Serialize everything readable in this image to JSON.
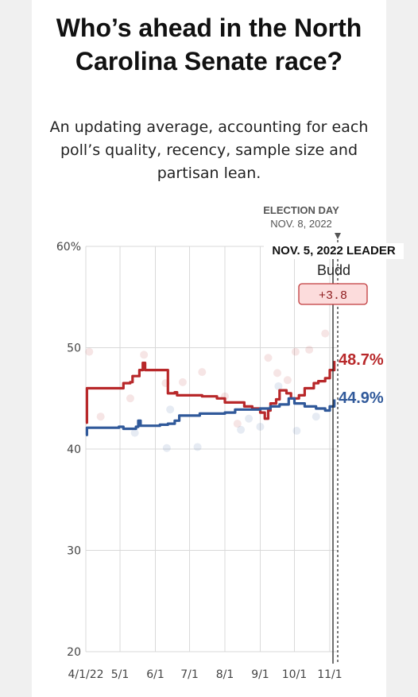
{
  "title": "Who’s ahead in the North Carolina Senate race?",
  "subtitle": "An updating average, accounting for each poll’s quality, recency, sample size and partisan lean.",
  "election_day": {
    "label": "ELECTION DAY",
    "date": "NOV. 8, 2022"
  },
  "leader_box": {
    "heading": "NOV. 5, 2022 LEADER",
    "name": "Budd",
    "margin": "+3.8"
  },
  "end_labels": {
    "rep": "48.7%",
    "dem": "44.9%"
  },
  "colors": {
    "rep": "#b8282a",
    "dem": "#30599a",
    "grid": "#d9d9d9",
    "leader_bg": "#fcdcdc"
  },
  "chart_data": {
    "type": "line",
    "x_tick_labels": [
      "4/1/22",
      "5/1",
      "6/1",
      "7/1",
      "8/1",
      "9/1",
      "10/1",
      "11/1"
    ],
    "y_tick_labels": [
      "60%",
      "50",
      "40",
      "30",
      "20"
    ],
    "ylim": [
      20,
      60
    ],
    "xlim": [
      "2022-04-01",
      "2022-11-08"
    ],
    "grid": true,
    "series": [
      {
        "party": "rep",
        "points": [
          [
            "2022-04-01",
            42.6
          ],
          [
            "2022-04-02",
            46.0
          ],
          [
            "2022-04-30",
            46.0
          ],
          [
            "2022-05-04",
            46.5
          ],
          [
            "2022-05-10",
            46.6
          ],
          [
            "2022-05-12",
            47.2
          ],
          [
            "2022-05-18",
            47.8
          ],
          [
            "2022-05-21",
            48.5
          ],
          [
            "2022-05-23",
            47.8
          ],
          [
            "2022-06-04",
            47.8
          ],
          [
            "2022-06-10",
            47.8
          ],
          [
            "2022-06-12",
            45.5
          ],
          [
            "2022-06-18",
            45.6
          ],
          [
            "2022-06-20",
            45.3
          ],
          [
            "2022-07-05",
            45.3
          ],
          [
            "2022-07-12",
            45.2
          ],
          [
            "2022-07-25",
            45.0
          ],
          [
            "2022-08-01",
            44.6
          ],
          [
            "2022-08-18",
            44.2
          ],
          [
            "2022-08-25",
            44.0
          ],
          [
            "2022-09-01",
            43.6
          ],
          [
            "2022-09-05",
            43.0
          ],
          [
            "2022-09-08",
            43.8
          ],
          [
            "2022-09-10",
            44.5
          ],
          [
            "2022-09-15",
            44.9
          ],
          [
            "2022-09-18",
            45.8
          ],
          [
            "2022-09-24",
            45.5
          ],
          [
            "2022-09-28",
            45.0
          ],
          [
            "2022-10-05",
            45.3
          ],
          [
            "2022-10-10",
            46.0
          ],
          [
            "2022-10-18",
            46.5
          ],
          [
            "2022-10-22",
            46.7
          ],
          [
            "2022-10-28",
            47.0
          ],
          [
            "2022-11-01",
            47.8
          ],
          [
            "2022-11-05",
            48.7
          ]
        ]
      },
      {
        "party": "dem",
        "points": [
          [
            "2022-04-01",
            41.4
          ],
          [
            "2022-04-02",
            42.1
          ],
          [
            "2022-04-30",
            42.2
          ],
          [
            "2022-05-04",
            42.0
          ],
          [
            "2022-05-15",
            42.2
          ],
          [
            "2022-05-17",
            42.8
          ],
          [
            "2022-05-19",
            42.3
          ],
          [
            "2022-06-05",
            42.4
          ],
          [
            "2022-06-12",
            42.5
          ],
          [
            "2022-06-18",
            42.8
          ],
          [
            "2022-06-22",
            43.3
          ],
          [
            "2022-07-05",
            43.3
          ],
          [
            "2022-07-10",
            43.5
          ],
          [
            "2022-08-01",
            43.6
          ],
          [
            "2022-08-10",
            43.9
          ],
          [
            "2022-08-20",
            43.9
          ],
          [
            "2022-09-01",
            44.0
          ],
          [
            "2022-09-10",
            44.2
          ],
          [
            "2022-09-18",
            44.4
          ],
          [
            "2022-09-26",
            45.0
          ],
          [
            "2022-10-01",
            44.5
          ],
          [
            "2022-10-10",
            44.2
          ],
          [
            "2022-10-20",
            44.0
          ],
          [
            "2022-10-28",
            43.8
          ],
          [
            "2022-11-01",
            44.2
          ],
          [
            "2022-11-05",
            44.9
          ]
        ]
      }
    ]
  }
}
